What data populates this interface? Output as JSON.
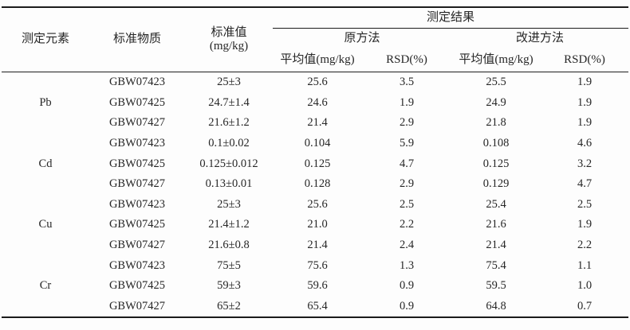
{
  "table": {
    "header": {
      "col_element": "测定元素",
      "col_material": "标准物质",
      "col_standard_line1": "标准值",
      "col_standard_line2": "(mg/kg)",
      "results_group": "测定结果",
      "method_original": "原方法",
      "method_improved": "改进方法",
      "sub_mean_original": "平均值(mg/kg)",
      "sub_rsd_original": "RSD(%)",
      "sub_mean_improved": "平均值(mg/kg)",
      "sub_rsd_improved": "RSD(%)"
    },
    "groups": [
      {
        "element": "Pb",
        "rows": [
          {
            "material": "GBW07423",
            "standard": "25±3",
            "orig_mean": "25.6",
            "orig_rsd": "3.5",
            "impr_mean": "25.5",
            "impr_rsd": "1.9"
          },
          {
            "material": "GBW07425",
            "standard": "24.7±1.4",
            "orig_mean": "24.6",
            "orig_rsd": "1.9",
            "impr_mean": "24.9",
            "impr_rsd": "1.9"
          },
          {
            "material": "GBW07427",
            "standard": "21.6±1.2",
            "orig_mean": "21.4",
            "orig_rsd": "2.9",
            "impr_mean": "21.8",
            "impr_rsd": "1.9"
          }
        ]
      },
      {
        "element": "Cd",
        "rows": [
          {
            "material": "GBW07423",
            "standard": "0.1±0.02",
            "orig_mean": "0.104",
            "orig_rsd": "5.9",
            "impr_mean": "0.108",
            "impr_rsd": "4.6"
          },
          {
            "material": "GBW07425",
            "standard": "0.125±0.012",
            "orig_mean": "0.125",
            "orig_rsd": "4.7",
            "impr_mean": "0.125",
            "impr_rsd": "3.2"
          },
          {
            "material": "GBW07427",
            "standard": "0.13±0.01",
            "orig_mean": "0.128",
            "orig_rsd": "2.9",
            "impr_mean": "0.129",
            "impr_rsd": "4.7"
          }
        ]
      },
      {
        "element": "Cu",
        "rows": [
          {
            "material": "GBW07423",
            "standard": "25±3",
            "orig_mean": "25.6",
            "orig_rsd": "2.5",
            "impr_mean": "25.4",
            "impr_rsd": "2.5"
          },
          {
            "material": "GBW07425",
            "standard": "21.4±1.2",
            "orig_mean": "21.0",
            "orig_rsd": "2.2",
            "impr_mean": "21.6",
            "impr_rsd": "1.9"
          },
          {
            "material": "GBW07427",
            "standard": "21.6±0.8",
            "orig_mean": "21.4",
            "orig_rsd": "2.4",
            "impr_mean": "21.4",
            "impr_rsd": "2.2"
          }
        ]
      },
      {
        "element": "Cr",
        "rows": [
          {
            "material": "GBW07423",
            "standard": "75±5",
            "orig_mean": "75.6",
            "orig_rsd": "1.3",
            "impr_mean": "75.4",
            "impr_rsd": "1.1"
          },
          {
            "material": "GBW07425",
            "standard": "59±3",
            "orig_mean": "59.6",
            "orig_rsd": "0.9",
            "impr_mean": "59.5",
            "impr_rsd": "1.0"
          },
          {
            "material": "GBW07427",
            "standard": "65±2",
            "orig_mean": "65.4",
            "orig_rsd": "0.9",
            "impr_mean": "64.8",
            "impr_rsd": "0.7"
          }
        ]
      }
    ]
  },
  "colors": {
    "text": "#262626",
    "rule": "#1c1c1c",
    "background": "#fdfdfd"
  }
}
